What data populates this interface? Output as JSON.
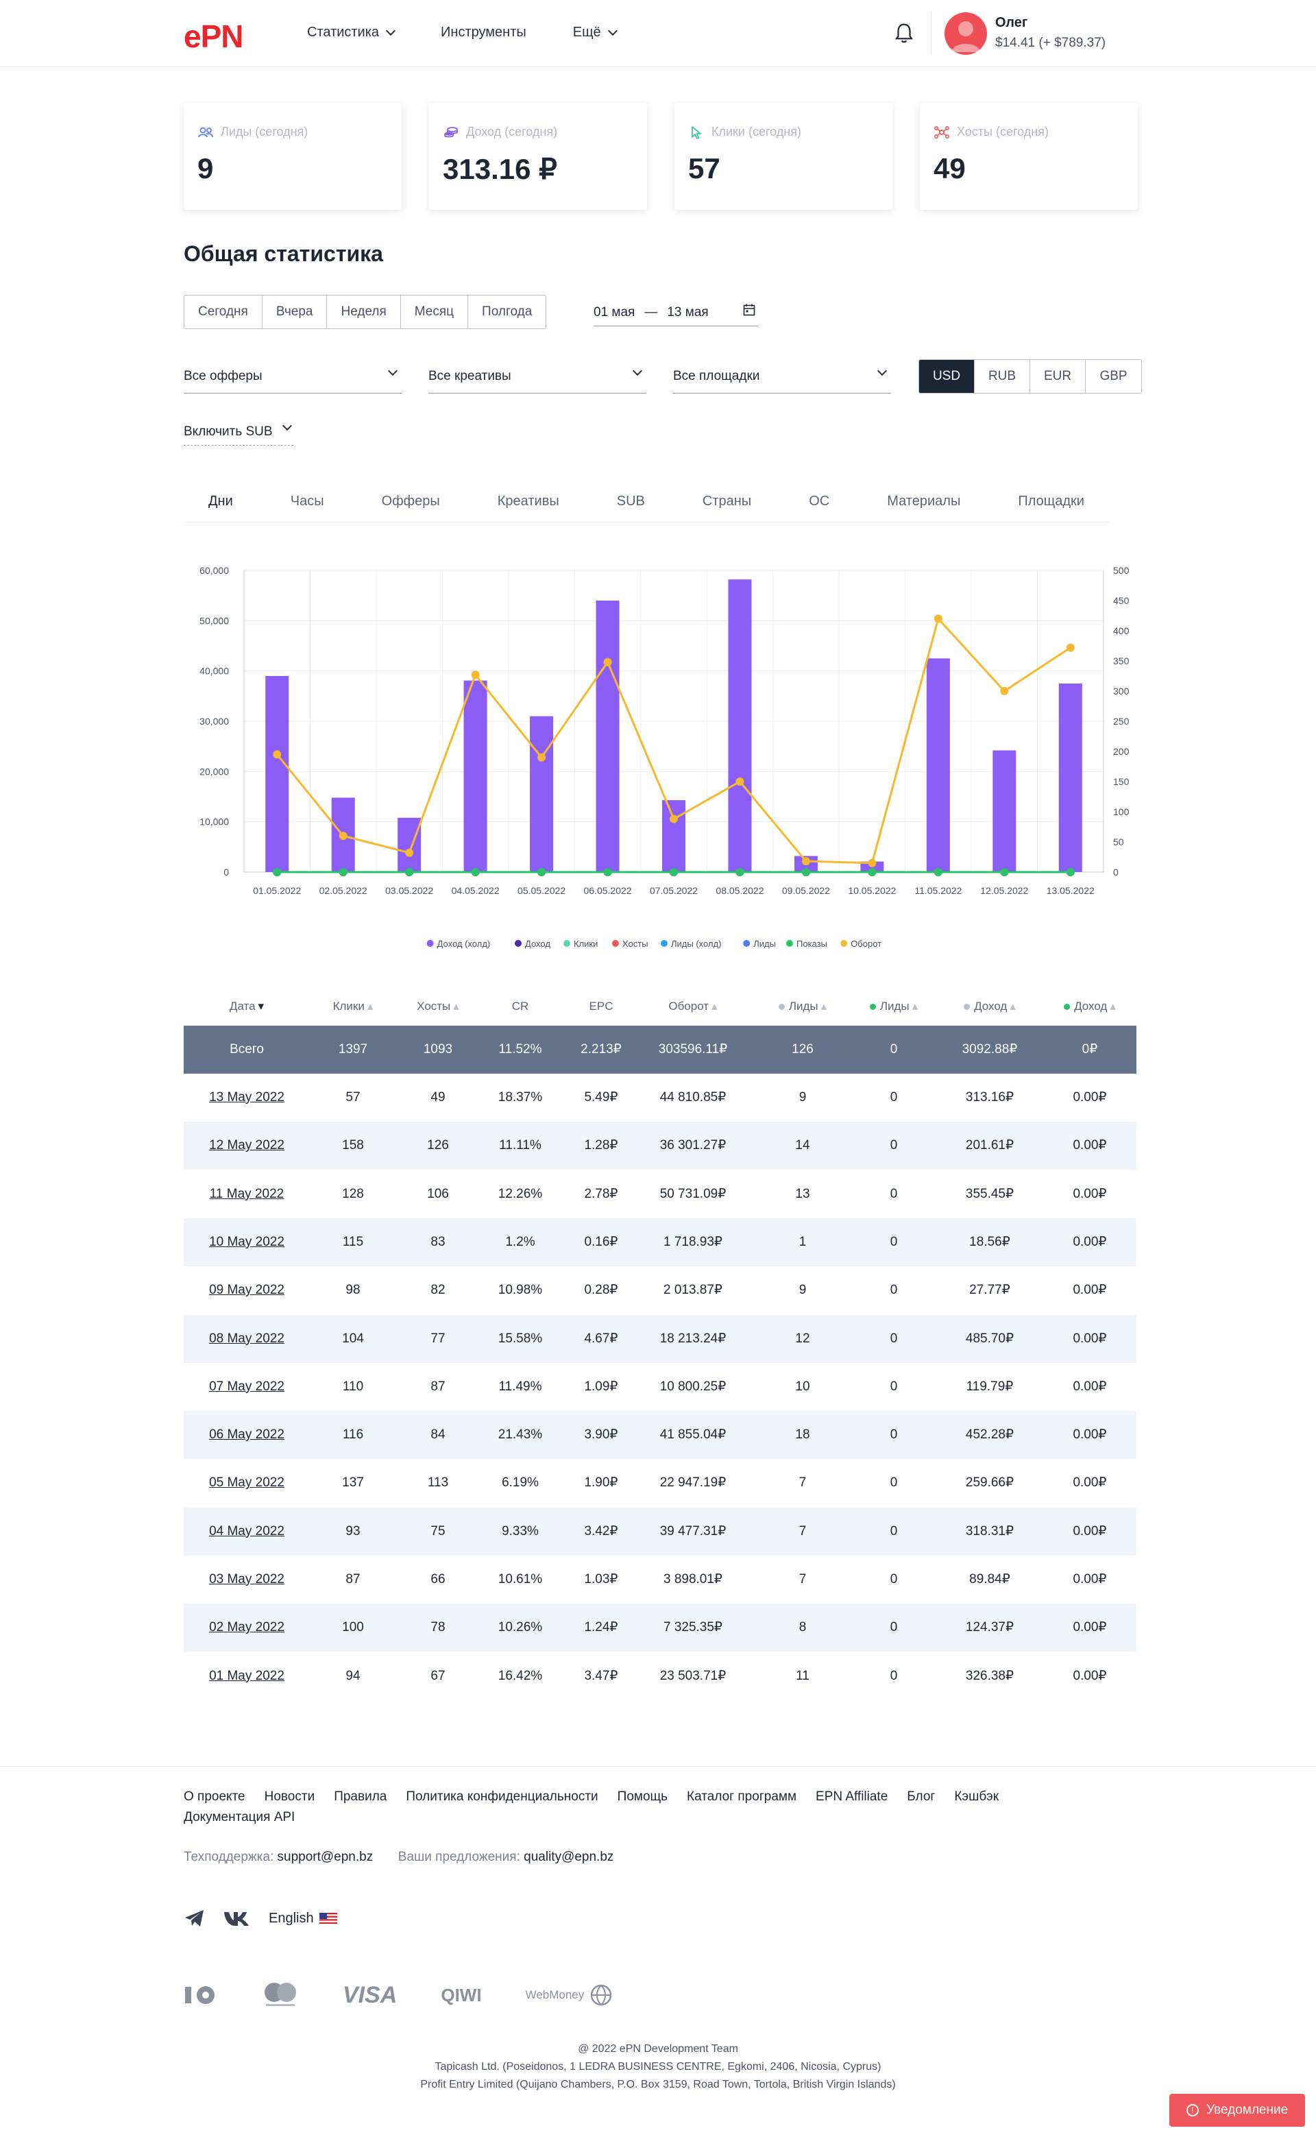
{
  "header": {
    "logo": "ePN",
    "nav": [
      {
        "label": "Статистика",
        "has_dropdown": true
      },
      {
        "label": "Инструменты",
        "has_dropdown": false
      },
      {
        "label": "Ещё",
        "has_dropdown": true
      }
    ],
    "user": {
      "name": "Олег",
      "balance": "$14.41 (+ $789.37)"
    }
  },
  "kpi": [
    {
      "label": "Лиды (сегодня)",
      "value": "9",
      "icon": "users-icon",
      "color": "#5b7ef0"
    },
    {
      "label": "Доход (сегодня)",
      "value": "313.16 ₽",
      "icon": "coins-icon",
      "color": "#8a5cf0"
    },
    {
      "label": "Клики (сегодня)",
      "value": "57",
      "icon": "cursor-icon",
      "color": "#3ec9a0"
    },
    {
      "label": "Хосты (сегодня)",
      "value": "49",
      "icon": "network-icon",
      "color": "#f0565a"
    }
  ],
  "section_title": "Общая статистика",
  "periods": [
    "Сегодня",
    "Вчера",
    "Неделя",
    "Месяц",
    "Полгода"
  ],
  "date_range": {
    "from": "01 мая",
    "sep": "—",
    "to": "13 мая"
  },
  "filters": {
    "offers": "Все офферы",
    "creatives": "Все креативы",
    "platforms": "Все площадки",
    "sub": "Включить SUB"
  },
  "currencies": [
    {
      "label": "USD",
      "active": true
    },
    {
      "label": "RUB",
      "active": false
    },
    {
      "label": "EUR",
      "active": false
    },
    {
      "label": "GBP",
      "active": false
    }
  ],
  "tabs": [
    {
      "label": "Дни",
      "active": true
    },
    {
      "label": "Часы",
      "active": false
    },
    {
      "label": "Офферы",
      "active": false
    },
    {
      "label": "Креативы",
      "active": false
    },
    {
      "label": "SUB",
      "active": false
    },
    {
      "label": "Страны",
      "active": false
    },
    {
      "label": "ОС",
      "active": false
    },
    {
      "label": "Материалы",
      "active": false
    },
    {
      "label": "Площадки",
      "active": false
    }
  ],
  "chart_data": {
    "type": "bar",
    "categories": [
      "01.05.2022",
      "02.05.2022",
      "03.05.2022",
      "04.05.2022",
      "05.05.2022",
      "06.05.2022",
      "07.05.2022",
      "08.05.2022",
      "09.05.2022",
      "10.05.2022",
      "11.05.2022",
      "12.05.2022",
      "13.05.2022"
    ],
    "y_left": {
      "range": [
        0,
        60000
      ],
      "ticks": [
        "0",
        "10,000",
        "20,000",
        "30,000",
        "40,000",
        "50,000",
        "60,000"
      ]
    },
    "y_right": {
      "range": [
        0,
        500
      ],
      "ticks": [
        "0",
        "50",
        "100",
        "150",
        "200",
        "250",
        "300",
        "350",
        "400",
        "450",
        "500"
      ]
    },
    "series": [
      {
        "name": "Доход (холд)",
        "kind": "bar",
        "axis": "left",
        "color": "#8b5cf6",
        "values": [
          39000,
          14800,
          10800,
          38100,
          31000,
          54000,
          14300,
          58200,
          3200,
          2100,
          42500,
          24200,
          37500
        ]
      },
      {
        "name": "Доход",
        "kind": "line",
        "axis": "left",
        "color": "#4c2aa8",
        "values": [
          0,
          0,
          0,
          0,
          0,
          0,
          0,
          0,
          0,
          0,
          0,
          0,
          0
        ]
      },
      {
        "name": "Клики",
        "kind": "line",
        "axis": "right",
        "color": "#5dd6b4",
        "values": [
          0,
          0,
          0,
          0,
          0,
          0,
          0,
          0,
          0,
          0,
          0,
          0,
          0
        ]
      },
      {
        "name": "Хосты",
        "kind": "line",
        "axis": "right",
        "color": "#f0565a",
        "values": [
          0,
          0,
          0,
          0,
          0,
          0,
          0,
          0,
          0,
          0,
          0,
          0,
          0
        ]
      },
      {
        "name": "Лиды (холд)",
        "kind": "line",
        "axis": "right",
        "color": "#2aa3e8",
        "values": [
          0,
          0,
          0,
          0,
          0,
          0,
          0,
          0,
          0,
          0,
          0,
          0,
          0
        ]
      },
      {
        "name": "Лиды",
        "kind": "line",
        "axis": "right",
        "color": "#4d7cf0",
        "values": [
          0,
          0,
          0,
          0,
          0,
          0,
          0,
          0,
          0,
          0,
          0,
          0,
          0
        ]
      },
      {
        "name": "Показы",
        "kind": "line",
        "axis": "right",
        "color": "#2ebf6b",
        "values": [
          0,
          0,
          0,
          0,
          0,
          0,
          0,
          0,
          0,
          0,
          0,
          0,
          0
        ]
      },
      {
        "name": "Оборот",
        "kind": "line",
        "axis": "right",
        "color": "#f5b82e",
        "values": [
          195,
          60,
          32,
          327,
          190,
          348,
          88,
          150,
          18,
          15,
          420,
          300,
          372
        ]
      }
    ],
    "grid": true,
    "legend": "bottom"
  },
  "table": {
    "columns": [
      {
        "label": "Дата",
        "dot": null,
        "sort": "▾"
      },
      {
        "label": "Клики",
        "dot": null,
        "sort": "▴"
      },
      {
        "label": "Хосты",
        "dot": null,
        "sort": "▴"
      },
      {
        "label": "CR",
        "dot": null,
        "sort": ""
      },
      {
        "label": "EPC",
        "dot": null,
        "sort": ""
      },
      {
        "label": "Оборот",
        "dot": null,
        "sort": "▴"
      },
      {
        "label": "Лиды",
        "dot": "#b9c0cc",
        "sort": "▴"
      },
      {
        "label": "Лиды",
        "dot": "#2ebf6b",
        "sort": "▴"
      },
      {
        "label": "Доход",
        "dot": "#b9c0cc",
        "sort": "▴"
      },
      {
        "label": "Доход",
        "dot": "#2ebf6b",
        "sort": "▴"
      }
    ],
    "total": [
      "Всего",
      "1397",
      "1093",
      "11.52%",
      "2.213₽",
      "303596.11₽",
      "126",
      "0",
      "3092.88₽",
      "0₽"
    ],
    "rows": [
      [
        "13 May 2022",
        "57",
        "49",
        "18.37%",
        "5.49₽",
        "44 810.85₽",
        "9",
        "0",
        "313.16₽",
        "0.00₽"
      ],
      [
        "12 May 2022",
        "158",
        "126",
        "11.11%",
        "1.28₽",
        "36 301.27₽",
        "14",
        "0",
        "201.61₽",
        "0.00₽"
      ],
      [
        "11 May 2022",
        "128",
        "106",
        "12.26%",
        "2.78₽",
        "50 731.09₽",
        "13",
        "0",
        "355.45₽",
        "0.00₽"
      ],
      [
        "10 May 2022",
        "115",
        "83",
        "1.2%",
        "0.16₽",
        "1 718.93₽",
        "1",
        "0",
        "18.56₽",
        "0.00₽"
      ],
      [
        "09 May 2022",
        "98",
        "82",
        "10.98%",
        "0.28₽",
        "2 013.87₽",
        "9",
        "0",
        "27.77₽",
        "0.00₽"
      ],
      [
        "08 May 2022",
        "104",
        "77",
        "15.58%",
        "4.67₽",
        "18 213.24₽",
        "12",
        "0",
        "485.70₽",
        "0.00₽"
      ],
      [
        "07 May 2022",
        "110",
        "87",
        "11.49%",
        "1.09₽",
        "10 800.25₽",
        "10",
        "0",
        "119.79₽",
        "0.00₽"
      ],
      [
        "06 May 2022",
        "116",
        "84",
        "21.43%",
        "3.90₽",
        "41 855.04₽",
        "18",
        "0",
        "452.28₽",
        "0.00₽"
      ],
      [
        "05 May 2022",
        "137",
        "113",
        "6.19%",
        "1.90₽",
        "22 947.19₽",
        "7",
        "0",
        "259.66₽",
        "0.00₽"
      ],
      [
        "04 May 2022",
        "93",
        "75",
        "9.33%",
        "3.42₽",
        "39 477.31₽",
        "7",
        "0",
        "318.31₽",
        "0.00₽"
      ],
      [
        "03 May 2022",
        "87",
        "66",
        "10.61%",
        "1.03₽",
        "3 898.01₽",
        "7",
        "0",
        "89.84₽",
        "0.00₽"
      ],
      [
        "02 May 2022",
        "100",
        "78",
        "10.26%",
        "1.24₽",
        "7 325.35₽",
        "8",
        "0",
        "124.37₽",
        "0.00₽"
      ],
      [
        "01 May 2022",
        "94",
        "67",
        "16.42%",
        "3.47₽",
        "23 503.71₽",
        "11",
        "0",
        "326.38₽",
        "0.00₽"
      ]
    ]
  },
  "footer": {
    "links": [
      "О проекте",
      "Новости",
      "Правила",
      "Политика конфиденциальности",
      "Помощь",
      "Каталог программ",
      "EPN Affiliate",
      "Блог",
      "Кэшбэк",
      "Документация API"
    ],
    "support_label": "Техподдержка:",
    "support_email": "support@epn.bz",
    "ideas_label": "Ваши предложения:",
    "ideas_email": "quality@epn.bz",
    "language": "English",
    "payments": [
      "ЮMoney",
      "Mastercard",
      "VISA",
      "QIWI",
      "WebMoney"
    ],
    "copyright": [
      "@ 2022 ePN Development Team",
      "Tapicash Ltd. (Poseidonos, 1 LEDRA BUSINESS CENTRE, Egkomi, 2406, Nicosia, Cyprus)",
      "Profit Entry Limited (Quijano Chambers, P.O. Box 3159, Road Town, Tortola, British Virgin Islands)"
    ]
  },
  "notify_button": "Уведомление"
}
